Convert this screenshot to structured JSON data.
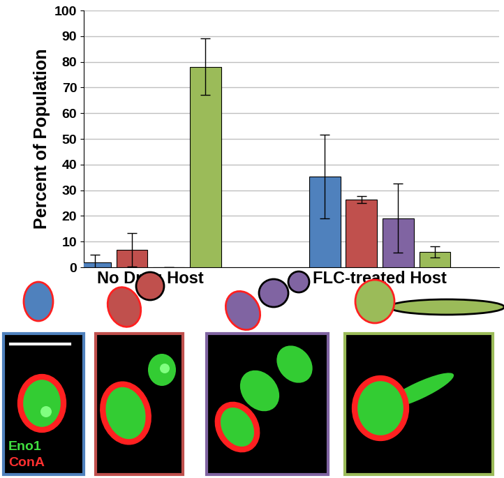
{
  "chart_data": {
    "type": "bar",
    "y_label": "Percent of Population",
    "categories": [
      "No Drug Host",
      "FLC-treated Host"
    ],
    "series": [
      {
        "color": "#4f81bd",
        "values": [
          2,
          35.2
        ],
        "errors": [
          2.9,
          16.3
        ]
      },
      {
        "color": "#c0504d",
        "values": [
          6.7,
          26.3
        ],
        "errors": [
          6.5,
          1.3
        ]
      },
      {
        "color": "#8064a2",
        "values": [
          0,
          19.1
        ],
        "errors": [
          0,
          13.4
        ]
      },
      {
        "color": "#9bbb59",
        "values": [
          78,
          6
        ],
        "errors": [
          11,
          2.2
        ]
      }
    ],
    "ylim": [
      0,
      100
    ],
    "yticks": [
      0,
      10,
      20,
      30,
      40,
      50,
      60,
      70,
      80,
      90,
      100
    ],
    "grid": true,
    "annotations": [
      {
        "text": "Eno1",
        "color": "#40e040"
      },
      {
        "text": "ConA",
        "color": "#ff3030"
      }
    ]
  }
}
